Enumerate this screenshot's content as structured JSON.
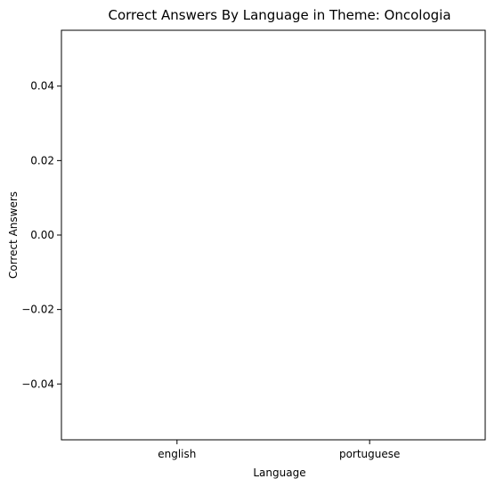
{
  "chart_data": {
    "type": "bar",
    "title": "Correct Answers By Language in Theme: Oncologia",
    "xlabel": "Language",
    "ylabel": "Correct Answers",
    "categories": [
      "english",
      "portuguese"
    ],
    "values": [
      0,
      0
    ],
    "ylim": [
      -0.055,
      0.055
    ],
    "yticks": [
      0.04,
      0.02,
      0.0,
      -0.02,
      -0.04
    ],
    "ytick_labels": [
      "0.04",
      "0.02",
      "0.00",
      "−0.02",
      "−0.04"
    ],
    "grid": false,
    "legend": "none"
  }
}
